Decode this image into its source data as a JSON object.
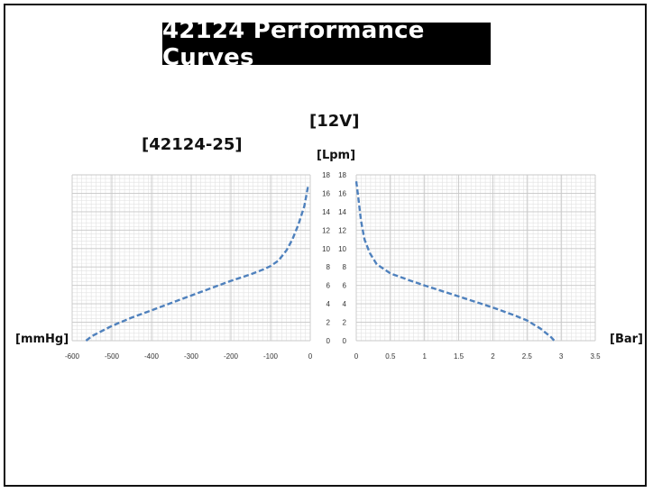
{
  "title": "42124 Performance Curves",
  "voltage_label": "[12V]",
  "model_label": "[42124-25]",
  "y_unit": "[Lpm]",
  "left_unit": "[mmHg]",
  "right_unit": "[Bar]",
  "colors": {
    "curve": "#4f81bd",
    "grid": "#c8c8c8",
    "frame": "#111111",
    "title_bg": "#000000"
  },
  "chart_data": [
    {
      "type": "line",
      "panel": "vacuum",
      "xlabel": "[mmHg]",
      "ylabel": "[Lpm]",
      "xlim": [
        -600,
        0
      ],
      "ylim": [
        0,
        18
      ],
      "x_ticks": [
        -600,
        -500,
        -400,
        -300,
        -200,
        -100,
        0
      ],
      "y_ticks": [
        0,
        2,
        4,
        6,
        8,
        10,
        12,
        14,
        16,
        18
      ],
      "grid": true,
      "line_style": "dashed",
      "series": [
        {
          "x": [
            -565,
            -550,
            -500,
            -450,
            -400,
            -350,
            -300,
            -250,
            -200,
            -150,
            -120,
            -100,
            -80,
            -60,
            -45,
            -30,
            -15,
            -5
          ],
          "y": [
            0,
            0.5,
            1.6,
            2.5,
            3.3,
            4.1,
            4.9,
            5.7,
            6.5,
            7.2,
            7.7,
            8.1,
            8.7,
            9.8,
            11,
            12.6,
            14.6,
            16.9
          ]
        }
      ]
    },
    {
      "type": "line",
      "panel": "pressure",
      "xlabel": "[Bar]",
      "ylabel": "[Lpm]",
      "xlim": [
        0,
        3.5
      ],
      "ylim": [
        0,
        18
      ],
      "x_ticks": [
        0,
        0.5,
        1,
        1.5,
        2,
        2.5,
        3,
        3.5
      ],
      "y_ticks": [
        0,
        2,
        4,
        6,
        8,
        10,
        12,
        14,
        16,
        18
      ],
      "grid": true,
      "line_style": "dashed",
      "series": [
        {
          "x": [
            0,
            0.03,
            0.07,
            0.12,
            0.2,
            0.3,
            0.5,
            0.8,
            1.0,
            1.5,
            2.0,
            2.3,
            2.5,
            2.7,
            2.85,
            2.9
          ],
          "y": [
            17.3,
            15.5,
            13,
            11,
            9.5,
            8.3,
            7.3,
            6.5,
            6.0,
            4.8,
            3.6,
            2.8,
            2.2,
            1.3,
            0.4,
            0
          ]
        }
      ]
    }
  ]
}
